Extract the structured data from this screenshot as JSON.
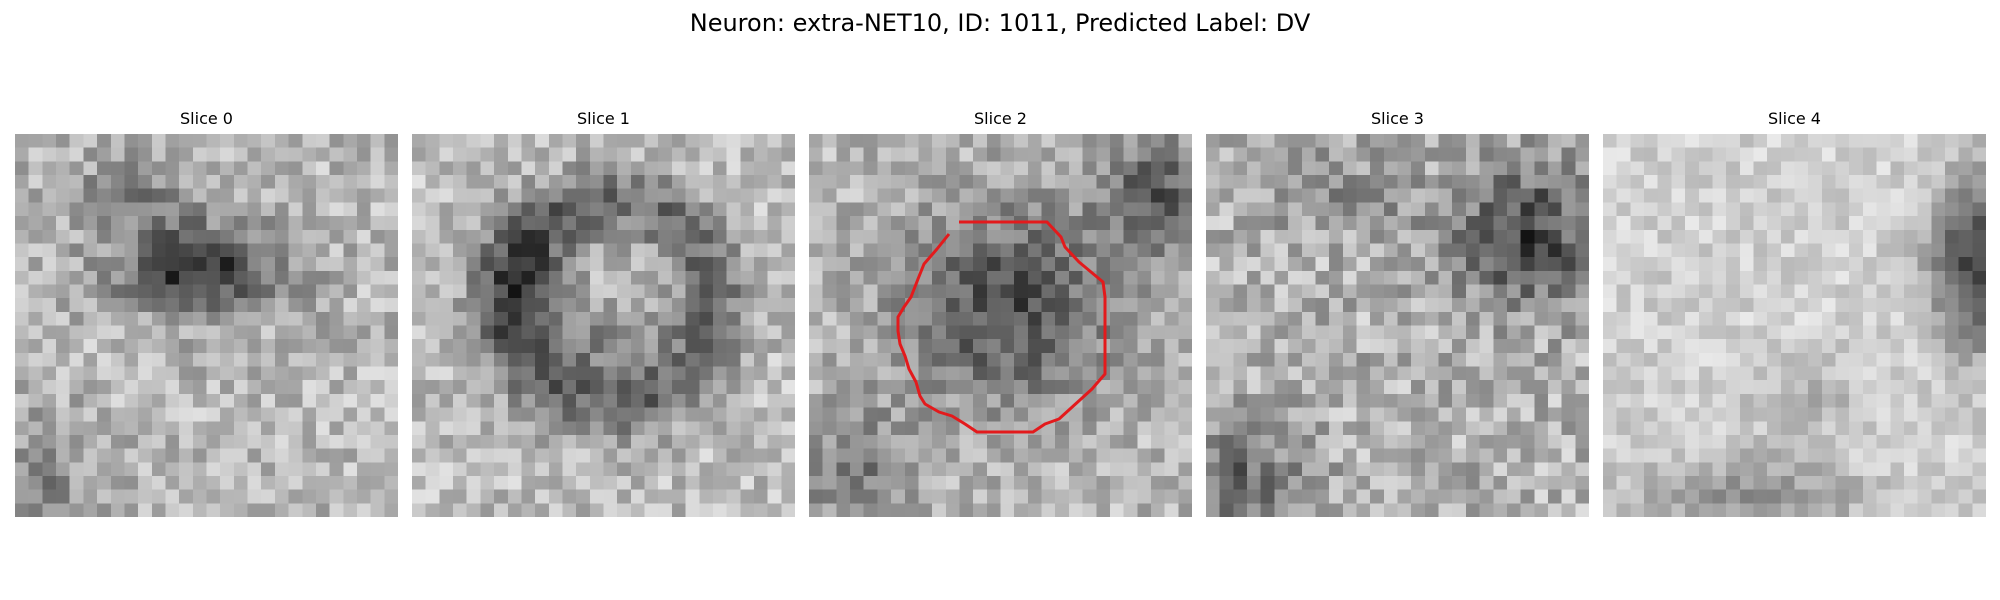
{
  "title": "Neuron: extra-NET10, ID: 1011, Predicted Label: DV",
  "colormap": "gray",
  "contour_color": "#e31a1c",
  "grid_size": 28,
  "slices": [
    {
      "label": "Slice 0",
      "has_contour": false
    },
    {
      "label": "Slice 1",
      "has_contour": false
    },
    {
      "label": "Slice 2",
      "has_contour": true
    },
    {
      "label": "Slice 3",
      "has_contour": false
    },
    {
      "label": "Slice 4",
      "has_contour": false
    }
  ]
}
